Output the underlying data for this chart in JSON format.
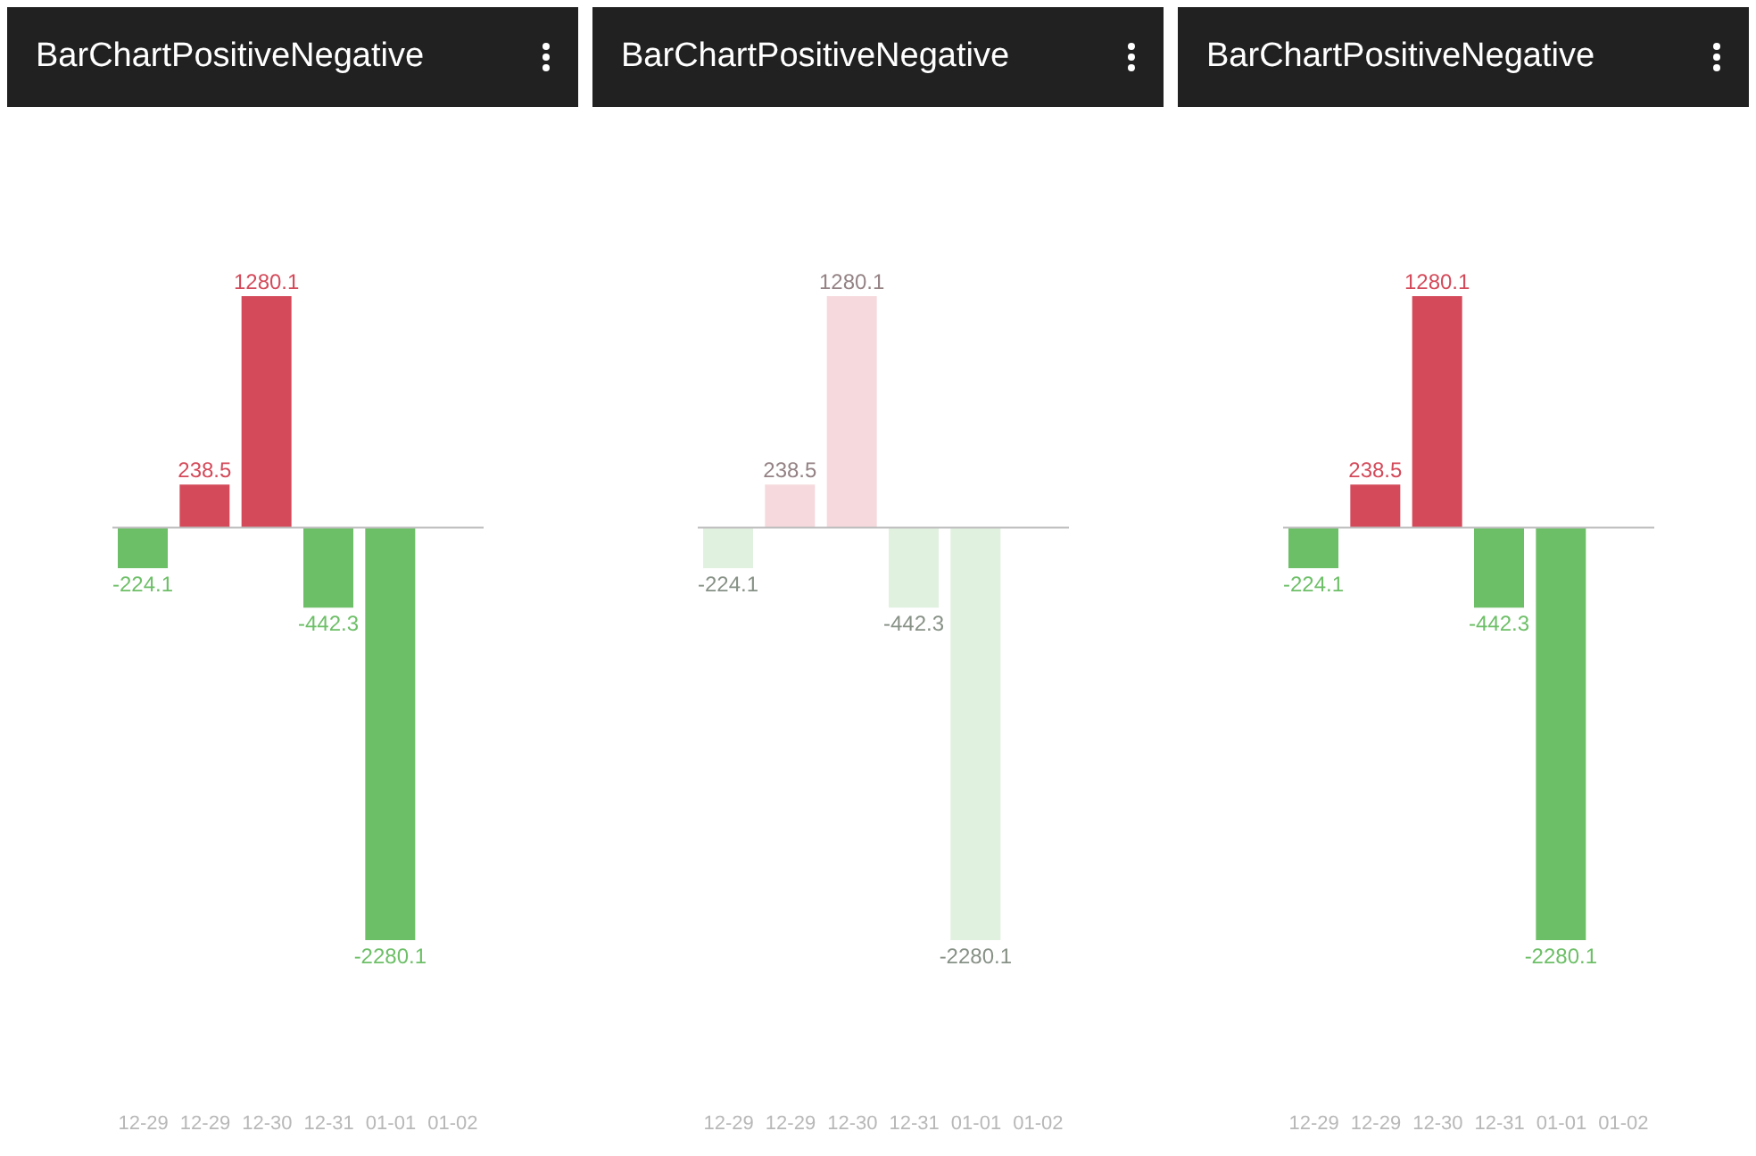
{
  "chart_data": [
    {
      "type": "bar",
      "title": "BarChartPositiveNegative",
      "categories": [
        "12-29",
        "12-29",
        "12-30",
        "12-31",
        "01-01",
        "01-02"
      ],
      "values": [
        -224.1,
        238.5,
        1280.1,
        -442.3,
        -2280.1,
        null
      ],
      "colors": [
        "#6dbf67",
        "#d44a5a",
        "#d44a5a",
        "#6dbf67",
        "#6dbf67",
        "#6dbf67"
      ],
      "data_labels": true
    },
    {
      "type": "bar",
      "title": "BarChartPositiveNegative",
      "categories": [
        "12-29",
        "12-29",
        "12-30",
        "12-31",
        "01-01",
        "01-02"
      ],
      "values": [
        -224.1,
        238.5,
        1280.1,
        -442.3,
        -2280.1,
        null
      ],
      "colors": [
        "#e1f1df",
        "#f6d9dd",
        "#f6d9dd",
        "#e1f1df",
        "#e1f1df",
        "#e1f1df"
      ],
      "data_labels": true
    },
    {
      "type": "bar",
      "title": "BarChartPositiveNegative",
      "categories": [
        "12-29",
        "12-29",
        "12-30",
        "12-31",
        "01-01",
        "01-02"
      ],
      "values": [
        -224.1,
        238.5,
        1280.1,
        -442.3,
        -2280.1,
        null
      ],
      "colors": [
        "#6dbf67",
        "#d44a5a",
        "#d44a5a",
        "#6dbf67",
        "#6dbf67",
        "#6dbf67"
      ],
      "data_labels": true
    }
  ]
}
